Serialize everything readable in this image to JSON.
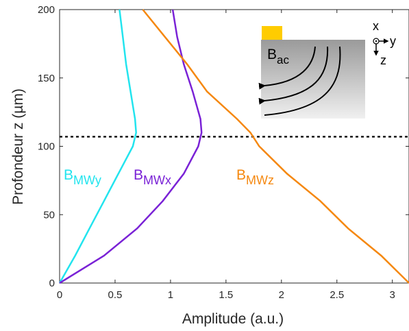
{
  "chart_data": {
    "type": "line",
    "xlabel": "Amplitude (a.u.)",
    "ylabel": "Profondeur z (µm)",
    "xlim": [
      0,
      3.15
    ],
    "ylim": [
      0,
      200
    ],
    "xticks": [
      0,
      0.5,
      1,
      1.5,
      2,
      2.5,
      3
    ],
    "yticks": [
      0,
      50,
      100,
      150,
      200
    ],
    "y": [
      0,
      20,
      40,
      60,
      80,
      100,
      110,
      120,
      140,
      160,
      180,
      200
    ],
    "series": [
      {
        "name": "B",
        "subscript": "MWy",
        "color": "#22e4ee",
        "values": [
          0,
          0.14,
          0.27,
          0.4,
          0.53,
          0.66,
          0.69,
          0.68,
          0.64,
          0.6,
          0.57,
          0.54
        ]
      },
      {
        "name": "B",
        "subscript": "MWx",
        "color": "#7a22d6",
        "values": [
          0,
          0.4,
          0.7,
          0.93,
          1.12,
          1.25,
          1.28,
          1.27,
          1.2,
          1.12,
          1.06,
          1.02
        ]
      },
      {
        "name": "B",
        "subscript": "MWz",
        "color": "#f5880f",
        "values": [
          3.15,
          2.9,
          2.6,
          2.35,
          2.05,
          1.8,
          1.72,
          1.6,
          1.33,
          1.15,
          0.95,
          0.75
        ]
      }
    ],
    "hline": 107,
    "inset": {
      "field": "B",
      "field_sub": "ac",
      "axis_x": "x",
      "axis_y": "y",
      "axis_z": "z"
    }
  }
}
